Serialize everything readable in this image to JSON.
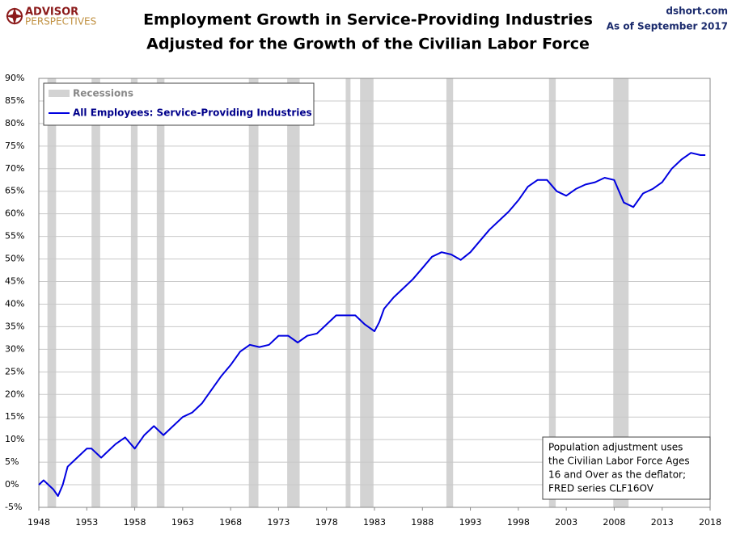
{
  "header": {
    "logo_top": "ADVISOR",
    "logo_bottom": "PERSPECTIVES",
    "site": "dshort.com",
    "date": "As of September 2017"
  },
  "chart_data": {
    "type": "line",
    "title": [
      "Employment Growth in Service-Providing Industries",
      "Adjusted for the Growth of the Civilian Labor Force"
    ],
    "recession_label": "Recessions",
    "recession_color": "#d3d3d3",
    "recessions": [
      [
        1948.9,
        1949.8
      ],
      [
        1953.5,
        1954.4
      ],
      [
        1957.6,
        1958.3
      ],
      [
        1960.3,
        1961.1
      ],
      [
        1969.9,
        1970.9
      ],
      [
        1973.9,
        1975.2
      ],
      [
        1980.0,
        1980.5
      ],
      [
        1981.5,
        1982.9
      ],
      [
        1990.5,
        1991.2
      ],
      [
        2001.2,
        2001.9
      ],
      [
        2007.9,
        2009.5
      ]
    ],
    "series": [
      {
        "name": "All Employees: Service-Providing Industries",
        "color": "#0000e0",
        "x": [
          1948,
          1948.5,
          1949.5,
          1950,
          1950.5,
          1951,
          1952,
          1953,
          1953.5,
          1954.5,
          1955,
          1956,
          1957,
          1958,
          1959,
          1960,
          1961,
          1962,
          1963,
          1964,
          1965,
          1966,
          1967,
          1968,
          1969,
          1970,
          1971,
          1972,
          1973,
          1974,
          1975,
          1976,
          1977,
          1978,
          1979,
          1980,
          1981,
          1982,
          1983,
          1983.5,
          1984,
          1985,
          1986,
          1987,
          1988,
          1989,
          1990,
          1991,
          1992,
          1993,
          1994,
          1995,
          1996,
          1997,
          1998,
          1999,
          2000,
          2001,
          2002,
          2003,
          2004,
          2005,
          2006,
          2007,
          2008,
          2009,
          2010,
          2011,
          2012,
          2013,
          2014,
          2015,
          2016,
          2017,
          2017.5
        ],
        "values": [
          0,
          1,
          -1,
          -2.5,
          0,
          4,
          6,
          8,
          8,
          6,
          7,
          9,
          10.5,
          8,
          11,
          13,
          11,
          13,
          15,
          16,
          18,
          21,
          24,
          26.5,
          29.5,
          31,
          30.5,
          31,
          33,
          33,
          31.5,
          33,
          33.5,
          35.5,
          37.5,
          37.5,
          37.5,
          35.5,
          34,
          36,
          39,
          41.5,
          43.5,
          45.5,
          48,
          50.5,
          51.5,
          51,
          49.8,
          51.5,
          54,
          56.5,
          58.5,
          60.5,
          63,
          66,
          67.5,
          67.5,
          65,
          64,
          65.5,
          66.5,
          67,
          68,
          67.5,
          62.5,
          61.5,
          64.5,
          65.5,
          67,
          70,
          72,
          73.5,
          73,
          73
        ]
      }
    ],
    "xlim": [
      1948,
      2018
    ],
    "xticks": [
      1948,
      1953,
      1958,
      1963,
      1968,
      1973,
      1978,
      1983,
      1988,
      1993,
      1998,
      2003,
      2008,
      2013,
      2018
    ],
    "ylim": [
      -5,
      90
    ],
    "yticks": [
      {
        "value": -5,
        "label": "-5%"
      },
      {
        "value": 0,
        "label": "0%"
      },
      {
        "value": 5,
        "label": "5%"
      },
      {
        "value": 10,
        "label": "10%"
      },
      {
        "value": 15,
        "label": "15%"
      },
      {
        "value": 20,
        "label": "20%"
      },
      {
        "value": 25,
        "label": "25%"
      },
      {
        "value": 30,
        "label": "30%"
      },
      {
        "value": 35,
        "label": "35%"
      },
      {
        "value": 40,
        "label": "40%"
      },
      {
        "value": 45,
        "label": "45%"
      },
      {
        "value": 50,
        "label": "50%"
      },
      {
        "value": 55,
        "label": "55%"
      },
      {
        "value": 60,
        "label": "60%"
      },
      {
        "value": 65,
        "label": "65%"
      },
      {
        "value": 70,
        "label": "70%"
      },
      {
        "value": 75,
        "label": "75%"
      },
      {
        "value": 80,
        "label": "80%"
      },
      {
        "value": 85,
        "label": "85%"
      },
      {
        "value": 90,
        "label": "90%"
      }
    ],
    "grid": true,
    "legend": "upper left",
    "annotation": [
      "Population adjustment uses",
      "the Civilian Labor Force Ages",
      "16 and Over as the deflator;",
      "FRED series  CLF16OV"
    ]
  }
}
